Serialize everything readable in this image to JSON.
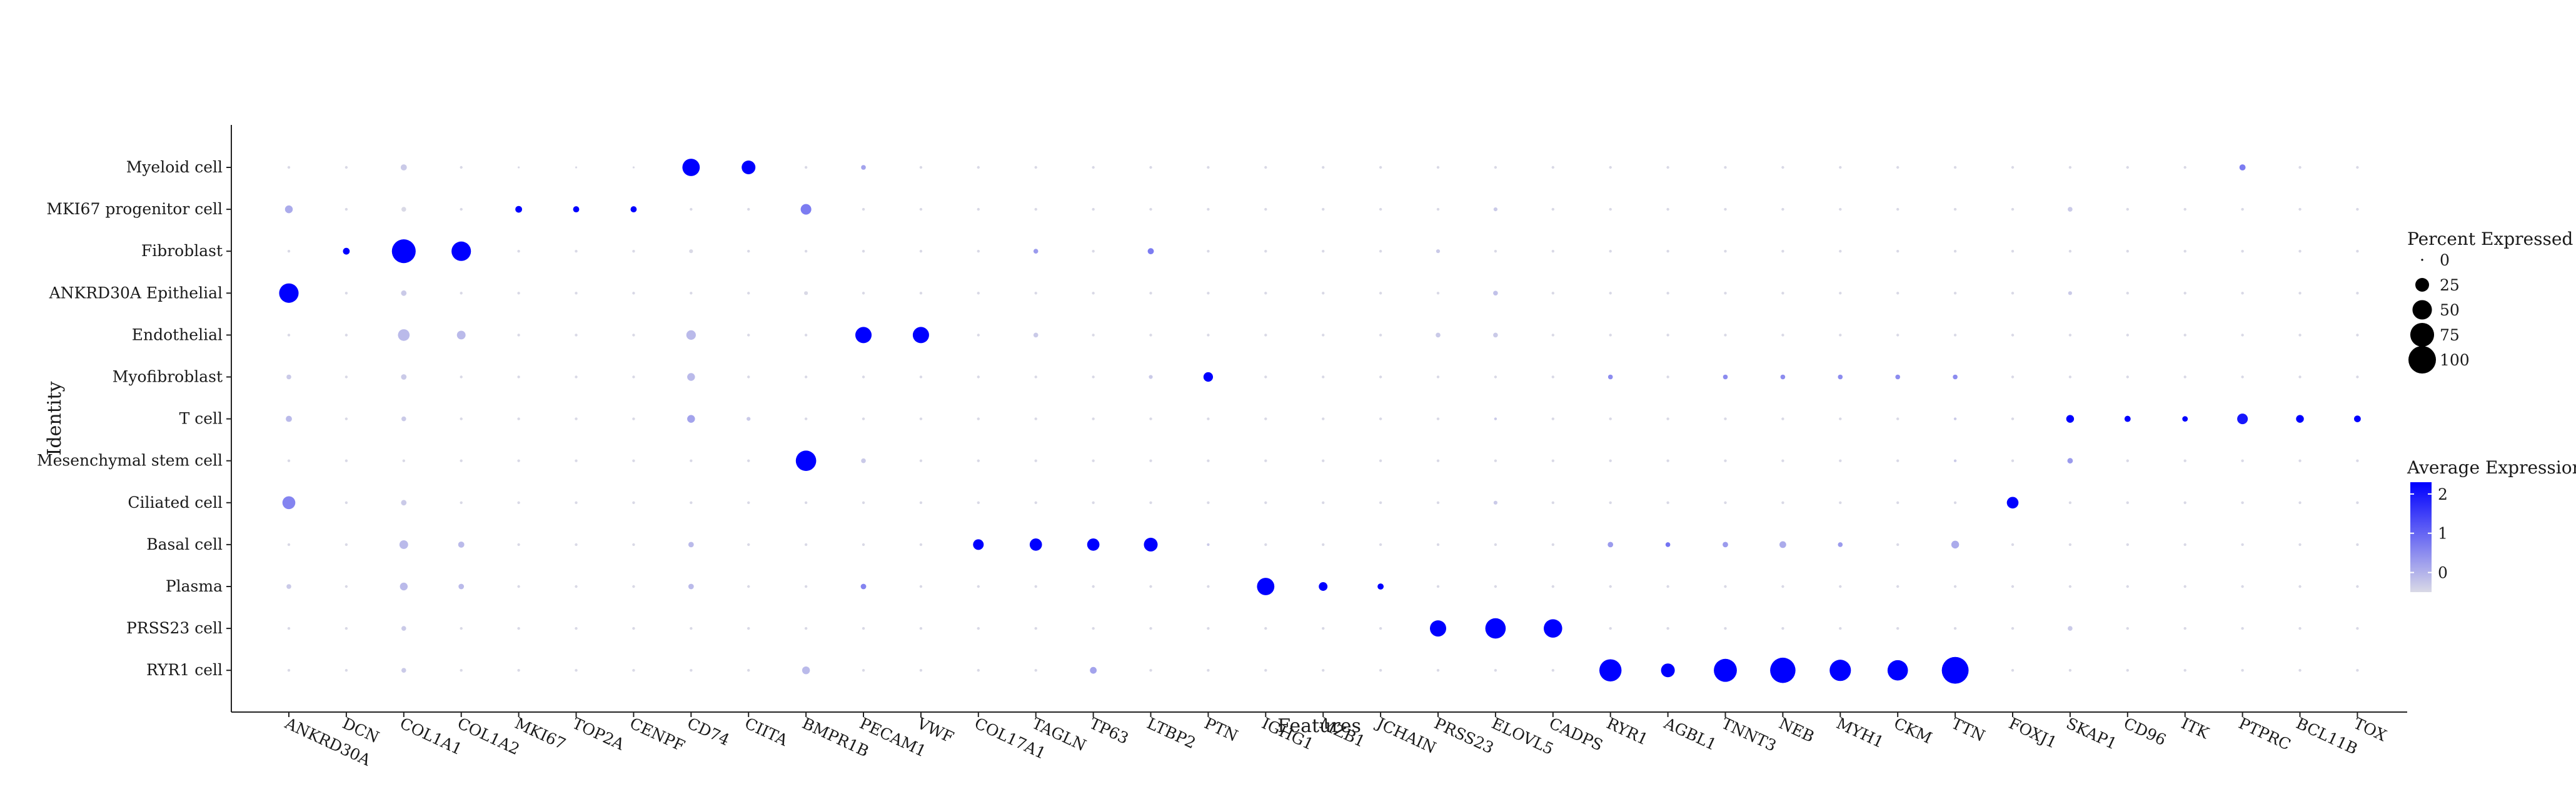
{
  "chart_data": {
    "type": "dotplot",
    "xlabel": "Features",
    "ylabel": "Identity",
    "features": [
      "ANKRD30A",
      "DCN",
      "COL1A1",
      "COL1A2",
      "MKI67",
      "TOP2A",
      "CENPF",
      "CD74",
      "CIITA",
      "BMPR1B",
      "PECAM1",
      "VWF",
      "COL17A1",
      "TAGLN",
      "TP63",
      "LTBP2",
      "PTN",
      "IGHG1",
      "MZB1",
      "JCHAIN",
      "PRSS23",
      "ELOVL5",
      "CADPS",
      "RYR1",
      "AGBL1",
      "TNNT3",
      "NEB",
      "MYH1",
      "CKM",
      "TTN",
      "FOXJ1",
      "SKAP1",
      "CD96",
      "ITK",
      "PTPRC",
      "BCL11B",
      "TOX"
    ],
    "identities": [
      "Myeloid cell",
      "MKI67 progenitor cell",
      "Fibroblast",
      "ANKRD30A Epithelial",
      "Endothelial",
      "Myofibroblast",
      "T cell",
      "Mesenchymal stem cell",
      "Ciliated cell",
      "Basal cell",
      "Plasma",
      "PRSS23 cell",
      "RYR1 cell"
    ],
    "pct_expressed": [
      [
        1,
        1,
        5,
        1,
        0,
        0,
        0,
        40,
        25,
        1,
        3,
        1,
        1,
        1,
        1,
        1,
        1,
        1,
        1,
        1,
        1,
        1,
        1,
        1,
        1,
        1,
        1,
        1,
        1,
        1,
        1,
        1,
        1,
        1,
        5,
        1,
        1
      ],
      [
        8,
        1,
        3,
        1,
        6,
        5,
        5,
        1,
        1,
        15,
        1,
        1,
        1,
        1,
        1,
        1,
        1,
        1,
        1,
        1,
        1,
        2,
        1,
        1,
        1,
        1,
        1,
        1,
        1,
        1,
        1,
        3,
        1,
        1,
        1,
        1,
        1
      ],
      [
        1,
        6,
        75,
        50,
        1,
        1,
        1,
        2,
        1,
        1,
        1,
        1,
        1,
        3,
        1,
        5,
        1,
        1,
        1,
        1,
        2,
        1,
        1,
        1,
        1,
        1,
        1,
        1,
        1,
        1,
        1,
        1,
        1,
        1,
        1,
        1,
        1
      ],
      [
        50,
        1,
        4,
        1,
        1,
        1,
        1,
        1,
        1,
        2,
        1,
        1,
        1,
        1,
        1,
        1,
        1,
        1,
        1,
        1,
        1,
        3,
        1,
        1,
        1,
        1,
        1,
        1,
        1,
        1,
        1,
        2,
        1,
        1,
        1,
        1,
        1
      ],
      [
        1,
        1,
        18,
        10,
        1,
        1,
        1,
        12,
        1,
        1,
        35,
        35,
        1,
        3,
        1,
        1,
        1,
        1,
        1,
        1,
        3,
        3,
        1,
        1,
        1,
        1,
        1,
        1,
        1,
        1,
        1,
        1,
        1,
        1,
        1,
        1,
        1
      ],
      [
        3,
        1,
        4,
        1,
        1,
        1,
        1,
        8,
        1,
        1,
        1,
        1,
        1,
        1,
        1,
        2,
        12,
        1,
        1,
        1,
        1,
        1,
        1,
        3,
        1,
        3,
        3,
        3,
        3,
        3,
        1,
        1,
        1,
        1,
        1,
        1,
        1
      ],
      [
        5,
        1,
        3,
        1,
        1,
        1,
        1,
        8,
        2,
        1,
        1,
        1,
        1,
        1,
        1,
        1,
        1,
        1,
        1,
        1,
        1,
        1,
        1,
        1,
        1,
        1,
        1,
        1,
        1,
        1,
        1,
        8,
        5,
        4,
        15,
        8,
        6
      ],
      [
        1,
        1,
        1,
        1,
        1,
        1,
        1,
        1,
        1,
        55,
        3,
        1,
        1,
        1,
        1,
        1,
        1,
        1,
        1,
        1,
        1,
        1,
        1,
        1,
        1,
        1,
        1,
        1,
        1,
        1,
        1,
        4,
        1,
        1,
        1,
        1,
        1
      ],
      [
        22,
        1,
        4,
        1,
        1,
        1,
        1,
        1,
        1,
        1,
        1,
        1,
        1,
        1,
        1,
        1,
        1,
        1,
        1,
        1,
        1,
        2,
        1,
        1,
        1,
        1,
        1,
        1,
        1,
        1,
        18,
        1,
        1,
        1,
        1,
        1,
        1
      ],
      [
        1,
        1,
        10,
        5,
        1,
        1,
        1,
        4,
        1,
        1,
        1,
        1,
        15,
        20,
        20,
        25,
        1,
        1,
        1,
        1,
        1,
        1,
        1,
        4,
        3,
        4,
        6,
        3,
        1,
        8,
        1,
        1,
        1,
        1,
        1,
        1,
        1
      ],
      [
        3,
        1,
        8,
        4,
        1,
        1,
        1,
        4,
        1,
        1,
        4,
        1,
        1,
        1,
        1,
        1,
        1,
        40,
        10,
        5,
        1,
        1,
        1,
        1,
        1,
        1,
        1,
        1,
        1,
        1,
        1,
        1,
        1,
        1,
        1,
        1,
        1
      ],
      [
        1,
        1,
        3,
        1,
        1,
        1,
        1,
        1,
        1,
        1,
        1,
        1,
        1,
        1,
        1,
        1,
        1,
        1,
        1,
        1,
        35,
        55,
        45,
        1,
        1,
        1,
        1,
        1,
        1,
        1,
        1,
        3,
        1,
        1,
        1,
        1,
        1
      ],
      [
        1,
        1,
        3,
        1,
        1,
        1,
        1,
        1,
        1,
        8,
        1,
        1,
        1,
        1,
        6,
        1,
        1,
        1,
        1,
        1,
        1,
        1,
        1,
        65,
        25,
        70,
        85,
        60,
        55,
        95,
        1,
        1,
        1,
        1,
        1,
        1,
        1
      ]
    ],
    "avg_expression": [
      [
        -0.5,
        -0.5,
        -0.3,
        -0.5,
        -0.5,
        -0.5,
        -0.5,
        2.3,
        2.3,
        -0.5,
        0.2,
        -0.5,
        -0.5,
        -0.5,
        -0.5,
        -0.5,
        -0.5,
        -0.5,
        -0.5,
        -0.5,
        -0.5,
        -0.5,
        -0.5,
        -0.5,
        -0.5,
        -0.5,
        -0.5,
        -0.5,
        -0.5,
        -0.5,
        -0.5,
        -0.5,
        -0.5,
        -0.5,
        0.7,
        -0.5,
        -0.5
      ],
      [
        0.1,
        -0.5,
        -0.5,
        -0.5,
        2.3,
        2.3,
        2.3,
        -0.5,
        -0.5,
        0.7,
        -0.5,
        -0.5,
        -0.5,
        -0.5,
        -0.5,
        -0.5,
        -0.5,
        -0.5,
        -0.5,
        -0.5,
        -0.5,
        -0.3,
        -0.5,
        -0.5,
        -0.5,
        -0.5,
        -0.5,
        -0.5,
        -0.5,
        -0.5,
        -0.5,
        -0.3,
        -0.5,
        -0.5,
        -0.5,
        -0.5,
        -0.5
      ],
      [
        -0.5,
        2.3,
        2.3,
        2.3,
        -0.5,
        -0.5,
        -0.5,
        -0.5,
        -0.5,
        -0.5,
        -0.5,
        -0.5,
        -0.5,
        0.3,
        -0.5,
        0.7,
        -0.5,
        -0.5,
        -0.5,
        -0.5,
        -0.3,
        -0.5,
        -0.5,
        -0.5,
        -0.5,
        -0.5,
        -0.5,
        -0.5,
        -0.5,
        -0.5,
        -0.5,
        -0.5,
        -0.5,
        -0.5,
        -0.5,
        -0.5,
        -0.5
      ],
      [
        2.3,
        -0.5,
        -0.3,
        -0.5,
        -0.5,
        -0.5,
        -0.5,
        -0.5,
        -0.5,
        -0.5,
        -0.5,
        -0.5,
        -0.5,
        -0.5,
        -0.5,
        -0.5,
        -0.5,
        -0.5,
        -0.5,
        -0.5,
        -0.5,
        -0.2,
        -0.5,
        -0.5,
        -0.5,
        -0.5,
        -0.5,
        -0.5,
        -0.5,
        -0.5,
        -0.5,
        -0.3,
        -0.5,
        -0.5,
        -0.5,
        -0.5,
        -0.5
      ],
      [
        -0.5,
        -0.5,
        -0.1,
        -0.1,
        -0.5,
        -0.5,
        -0.5,
        -0.1,
        -0.5,
        -0.5,
        2.3,
        2.3,
        -0.5,
        -0.3,
        -0.5,
        -0.5,
        -0.5,
        -0.5,
        -0.5,
        -0.5,
        -0.3,
        -0.3,
        -0.5,
        -0.5,
        -0.5,
        -0.5,
        -0.5,
        -0.5,
        -0.5,
        -0.5,
        -0.5,
        -0.5,
        -0.5,
        -0.5,
        -0.5,
        -0.5,
        -0.5
      ],
      [
        -0.3,
        -0.5,
        -0.3,
        -0.5,
        -0.5,
        -0.5,
        -0.5,
        -0.1,
        -0.5,
        -0.5,
        -0.5,
        -0.5,
        -0.5,
        -0.5,
        -0.5,
        -0.3,
        2.3,
        -0.5,
        -0.5,
        -0.5,
        -0.5,
        -0.5,
        -0.5,
        0.5,
        -0.5,
        0.5,
        0.5,
        0.5,
        0.5,
        0.5,
        -0.5,
        -0.5,
        -0.5,
        -0.5,
        -0.5,
        -0.5,
        -0.5
      ],
      [
        -0.1,
        -0.5,
        -0.3,
        -0.5,
        -0.5,
        -0.5,
        -0.5,
        0.2,
        -0.3,
        -0.5,
        -0.5,
        -0.5,
        -0.5,
        -0.5,
        -0.5,
        -0.5,
        -0.5,
        -0.5,
        -0.5,
        -0.5,
        -0.5,
        -0.3,
        -0.5,
        -0.5,
        -0.5,
        -0.5,
        -0.5,
        -0.5,
        -0.5,
        -0.3,
        -0.5,
        2.3,
        2.3,
        2.3,
        2.0,
        2.3,
        2.3
      ],
      [
        -0.5,
        -0.5,
        -0.5,
        -0.5,
        -0.5,
        -0.5,
        -0.5,
        -0.5,
        -0.5,
        2.3,
        -0.3,
        -0.5,
        -0.5,
        -0.5,
        -0.5,
        -0.5,
        -0.5,
        -0.5,
        -0.5,
        -0.5,
        -0.5,
        -0.5,
        -0.5,
        -0.5,
        -0.5,
        -0.5,
        -0.5,
        -0.5,
        -0.5,
        -0.3,
        -0.5,
        0.3,
        -0.5,
        -0.5,
        -0.5,
        -0.5,
        -0.5
      ],
      [
        0.6,
        -0.5,
        -0.3,
        -0.5,
        -0.5,
        -0.5,
        -0.5,
        -0.5,
        -0.5,
        -0.5,
        -0.5,
        -0.5,
        -0.5,
        -0.5,
        -0.5,
        -0.5,
        -0.5,
        -0.5,
        -0.5,
        -0.5,
        -0.5,
        -0.3,
        -0.5,
        -0.5,
        -0.5,
        -0.5,
        -0.5,
        -0.5,
        -0.5,
        -0.5,
        2.3,
        -0.5,
        -0.5,
        -0.5,
        -0.5,
        -0.5,
        -0.5
      ],
      [
        -0.5,
        -0.5,
        -0.1,
        -0.1,
        -0.5,
        -0.5,
        -0.5,
        -0.1,
        -0.5,
        -0.5,
        -0.5,
        -0.5,
        2.3,
        2.3,
        2.3,
        2.3,
        -0.3,
        -0.5,
        -0.5,
        -0.5,
        -0.5,
        -0.5,
        -0.5,
        0.3,
        0.8,
        0.3,
        0.1,
        0.3,
        -0.5,
        0.1,
        -0.5,
        -0.5,
        -0.5,
        -0.5,
        -0.5,
        -0.5,
        -0.5
      ],
      [
        -0.3,
        -0.5,
        -0.1,
        -0.1,
        -0.5,
        -0.5,
        -0.5,
        -0.1,
        -0.5,
        -0.5,
        0.6,
        -0.5,
        -0.5,
        -0.5,
        -0.5,
        -0.5,
        -0.5,
        2.3,
        2.3,
        2.3,
        -0.5,
        -0.5,
        -0.5,
        -0.5,
        -0.5,
        -0.5,
        -0.5,
        -0.5,
        -0.5,
        -0.5,
        -0.5,
        -0.5,
        -0.5,
        -0.5,
        -0.5,
        -0.5,
        -0.5
      ],
      [
        -0.5,
        -0.5,
        -0.3,
        -0.5,
        -0.5,
        -0.5,
        -0.5,
        -0.5,
        -0.5,
        -0.5,
        -0.5,
        -0.5,
        -0.5,
        -0.5,
        -0.5,
        -0.5,
        -0.5,
        -0.5,
        -0.5,
        -0.5,
        2.3,
        2.3,
        2.3,
        -0.5,
        -0.5,
        -0.5,
        -0.5,
        -0.5,
        -0.5,
        -0.5,
        -0.5,
        -0.3,
        -0.5,
        -0.5,
        -0.5,
        -0.5,
        -0.5
      ],
      [
        -0.5,
        -0.5,
        -0.3,
        -0.5,
        -0.5,
        -0.5,
        -0.5,
        -0.5,
        -0.5,
        -0.1,
        -0.5,
        -0.5,
        -0.5,
        -0.5,
        0.2,
        -0.5,
        -0.5,
        -0.5,
        -0.5,
        -0.5,
        -0.5,
        -0.5,
        -0.5,
        2.3,
        2.3,
        2.3,
        2.3,
        2.3,
        2.3,
        2.3,
        -0.5,
        -0.5,
        -0.5,
        -0.5,
        -0.5,
        -0.5,
        -0.5
      ]
    ],
    "legend_size": {
      "title": "Percent Expressed",
      "values": [
        0,
        25,
        50,
        75,
        100
      ],
      "labels": [
        "0",
        "25",
        "50",
        "75",
        "100"
      ]
    },
    "legend_color": {
      "title": "Average Expression",
      "min": -0.5,
      "max": 2.3,
      "ticks": [
        0,
        1,
        2
      ],
      "tick_labels": [
        "0",
        "1",
        "2"
      ],
      "low_color": "#d9d9e6",
      "high_color": "#0000ff"
    },
    "grid": false,
    "legend_placement": "right"
  }
}
